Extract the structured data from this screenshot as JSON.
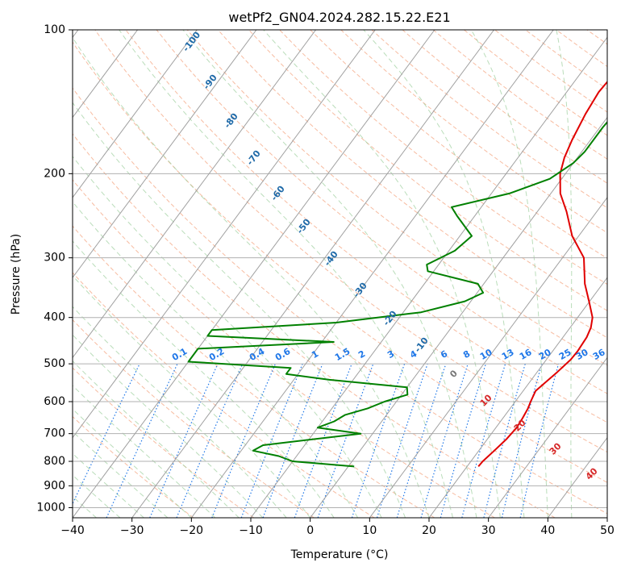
{
  "colors": {
    "temperature": "#e00000",
    "dewpoint": "#008000",
    "isotherm": "#a0a0a0",
    "dry_adiabat": "#f4a582",
    "moist_adiabat": "#9ccf9c",
    "mixing_ratio": "#1f77e8",
    "dry_adiabat_label": "#1f6aa8",
    "moist_adiabat_label": "#d62728",
    "grid": "#b0b0b0"
  },
  "chart_data": {
    "type": "line",
    "title": "wetPf2_GN04.2024.282.15.22.E21",
    "xlabel": "Temperature (°C)",
    "ylabel": "Pressure (hPa)",
    "xlim": [
      -40,
      50
    ],
    "ylim": [
      1050,
      100
    ],
    "y_scale": "log",
    "grid": true,
    "x_ticks": [
      "−40",
      "−30",
      "−20",
      "−10",
      "0",
      "10",
      "20",
      "30",
      "40",
      "50"
    ],
    "y_ticks": [
      "100",
      "200",
      "300",
      "400",
      "500",
      "600",
      "700",
      "800",
      "900",
      "1000"
    ],
    "series": [
      {
        "key": "temperature",
        "color": "#e00000",
        "points": [
          [
            820,
            21.9
          ],
          [
            800,
            22.0
          ],
          [
            760,
            22.6
          ],
          [
            720,
            23.2
          ],
          [
            680,
            23.5
          ],
          [
            650,
            23.3
          ],
          [
            620,
            23.0
          ],
          [
            600,
            22.6
          ],
          [
            570,
            22.1
          ],
          [
            550,
            22.6
          ],
          [
            520,
            23.4
          ],
          [
            490,
            24.1
          ],
          [
            470,
            24.2
          ],
          [
            440,
            24.0
          ],
          [
            420,
            23.5
          ],
          [
            400,
            22.5
          ],
          [
            370,
            19.9
          ],
          [
            340,
            17.0
          ],
          [
            300,
            13.6
          ],
          [
            270,
            8.9
          ],
          [
            240,
            4.9
          ],
          [
            220,
            1.6
          ],
          [
            200,
            -0.9
          ],
          [
            185,
            -2.2
          ],
          [
            170,
            -3.1
          ],
          [
            150,
            -4.1
          ],
          [
            135,
            -4.6
          ],
          [
            120,
            -4.2
          ],
          [
            110,
            -3.2
          ],
          [
            100,
            -2.2
          ]
        ]
      },
      {
        "key": "dewpoint",
        "color": "#008000",
        "points": [
          [
            820,
            1.0
          ],
          [
            800,
            -10.0
          ],
          [
            780,
            -13.0
          ],
          [
            760,
            -18.0
          ],
          [
            740,
            -17.0
          ],
          [
            700,
            -2.0
          ],
          [
            680,
            -10.0
          ],
          [
            660,
            -8.0
          ],
          [
            640,
            -7.0
          ],
          [
            620,
            -4.0
          ],
          [
            600,
            -2.0
          ],
          [
            580,
            1.0
          ],
          [
            560,
            0.0
          ],
          [
            540,
            -14.0
          ],
          [
            525,
            -22.0
          ],
          [
            510,
            -22.0
          ],
          [
            495,
            -40.0
          ],
          [
            465,
            -40.0
          ],
          [
            450,
            -18.0
          ],
          [
            437,
            -40.0
          ],
          [
            425,
            -40.0
          ],
          [
            410,
            -20.0
          ],
          [
            390,
            -7.0
          ],
          [
            370,
            -1.0
          ],
          [
            355,
            1.0
          ],
          [
            340,
            -1.0
          ],
          [
            320,
            -11.0
          ],
          [
            310,
            -12.0
          ],
          [
            290,
            -9.0
          ],
          [
            270,
            -8.0
          ],
          [
            245,
            -13.0
          ],
          [
            235,
            -15.0
          ],
          [
            220,
            -7.0
          ],
          [
            205,
            -2.0
          ],
          [
            190,
            0.0
          ],
          [
            180,
            0.5
          ],
          [
            160,
            0.5
          ],
          [
            140,
            1.0
          ],
          [
            125,
            3.5
          ],
          [
            112,
            5.5
          ],
          [
            100,
            7.0
          ]
        ]
      }
    ],
    "annotations": {
      "dry_adiabat_labels": [
        "-100",
        "-90",
        "-80",
        "-70",
        "-60",
        "-50",
        "-40",
        "-30",
        "-20",
        "-10"
      ],
      "mixing_ratio_labels": [
        "0.1",
        "0.2",
        "0.4",
        "0.6",
        "1",
        "1.5",
        "2",
        "3",
        "4",
        "6",
        "8",
        "10",
        "13",
        "16",
        "20",
        "25",
        "30",
        "36"
      ],
      "moist_adiabat_labels": [
        "0",
        "10",
        "20",
        "30",
        "40"
      ]
    }
  }
}
